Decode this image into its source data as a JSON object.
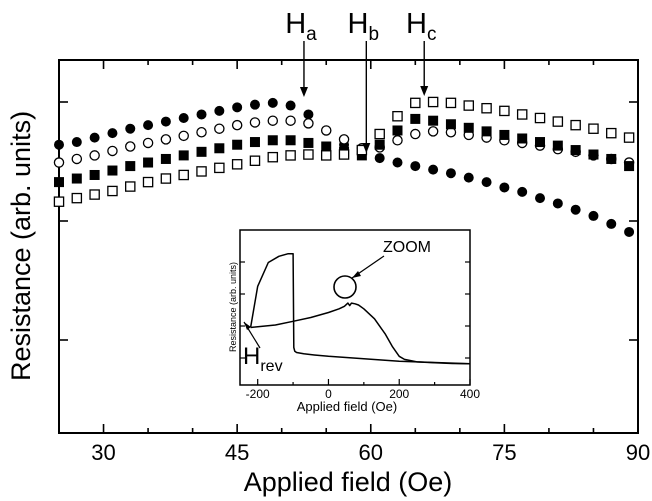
{
  "chart_data": [
    {
      "type": "scatter",
      "xlabel": "Applied field (Oe)",
      "ylabel": "Resistance (arb. units)",
      "xlim": [
        25,
        90
      ],
      "ylim": [
        0,
        100
      ],
      "xticks": [
        30,
        45,
        60,
        75,
        90
      ],
      "y_tick_labels_shown": false,
      "grid": false,
      "legend": "none",
      "annotations": [
        {
          "label": "H",
          "subscript": "a",
          "x": 52.5
        },
        {
          "label": "H",
          "subscript": "b",
          "x": 59.5
        },
        {
          "label": "H",
          "subscript": "c",
          "x": 66
        }
      ],
      "x": [
        25,
        27,
        29,
        31,
        33,
        35,
        37,
        39,
        41,
        43,
        45,
        47,
        49,
        51,
        53,
        55,
        57,
        59,
        61,
        63,
        65,
        67,
        69,
        71,
        73,
        75,
        77,
        79,
        81,
        83,
        85,
        87,
        89
      ],
      "series": [
        {
          "marker": "filled-circle",
          "values": [
            76,
            77.5,
            80,
            82.5,
            85,
            87,
            89,
            91,
            93,
            95,
            97,
            98.5,
            99.5,
            98,
            93,
            84,
            76,
            71,
            68.5,
            66,
            64,
            62,
            60,
            57.5,
            55,
            52,
            49.5,
            46,
            43,
            39.5,
            36,
            31.5,
            27
          ]
        },
        {
          "marker": "open-circle",
          "values": [
            66,
            68,
            70,
            72.5,
            75,
            77,
            79,
            81,
            83,
            85,
            87,
            88.5,
            89.5,
            89.5,
            88,
            84,
            79,
            74,
            74.5,
            78.5,
            82,
            83.5,
            83,
            81.5,
            80,
            78.5,
            77,
            75.5,
            73.5,
            72,
            70,
            68,
            66
          ]
        },
        {
          "marker": "filled-square",
          "values": [
            55,
            57,
            59,
            61.5,
            64,
            66,
            68,
            70,
            72,
            74,
            76,
            77.5,
            78.5,
            78.5,
            77,
            75,
            72,
            70,
            76,
            84,
            90.5,
            89.5,
            87.5,
            85.5,
            83.5,
            81.5,
            79.5,
            77.5,
            75.5,
            73,
            70.5,
            68,
            64
          ]
        },
        {
          "marker": "open-square",
          "values": [
            44,
            46,
            48,
            50,
            52.5,
            55,
            57,
            59,
            61,
            63,
            65,
            67,
            69,
            70,
            70.5,
            70,
            70.5,
            73,
            82,
            92,
            99.5,
            100,
            99.5,
            98,
            96.5,
            95,
            93,
            91,
            89,
            87,
            85,
            82.5,
            80
          ]
        }
      ]
    },
    {
      "type": "line",
      "inset": true,
      "xlabel": "Applied field (Oe)",
      "ylabel": "Resistance (arb. units)",
      "xlim": [
        -250,
        400
      ],
      "ylim": [
        0,
        100
      ],
      "xticks": [
        -200,
        0,
        200,
        400
      ],
      "annotations": [
        {
          "label": "ZOOM"
        },
        {
          "label": "H",
          "subscript": "rev"
        }
      ],
      "series": [
        {
          "x": [
            -220,
            -200,
            -170,
            -140,
            -115,
            -100,
            -98,
            -95,
            -90,
            -70,
            -40,
            0,
            50,
            100,
            150,
            200,
            250,
            300,
            350,
            400
          ],
          "values": [
            30,
            63,
            82,
            87,
            89,
            89,
            14,
            11,
            10,
            9,
            8,
            7,
            6,
            5,
            4,
            3,
            2.5,
            2,
            1.5,
            1
          ]
        },
        {
          "x": [
            -220,
            -150,
            -100,
            -50,
            0,
            30,
            45,
            55,
            60,
            65,
            75,
            85,
            100,
            130,
            160,
            180,
            200,
            215,
            250,
            300,
            350,
            400
          ],
          "values": [
            30,
            32,
            35,
            38,
            42,
            45,
            47,
            49.5,
            47.5,
            49.5,
            49,
            48,
            45,
            37,
            25,
            15,
            7,
            4.5,
            2.5,
            1.8,
            1.2,
            1
          ]
        }
      ]
    }
  ]
}
